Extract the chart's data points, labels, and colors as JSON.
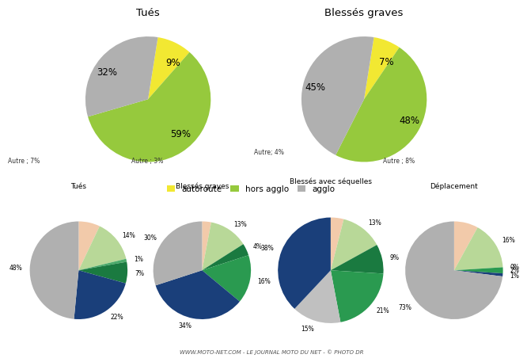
{
  "top_charts": [
    {
      "title": "Tués",
      "values": [
        9,
        59,
        32
      ],
      "labels": [
        "9%",
        "59%",
        "32%"
      ],
      "colors": [
        "#f2e832",
        "#96c93d",
        "#b0b0b0"
      ],
      "startangle": 81
    },
    {
      "title": "Blessés graves",
      "values": [
        7,
        48,
        45
      ],
      "labels": [
        "7%",
        "48%",
        "45%"
      ],
      "colors": [
        "#f2e832",
        "#96c93d",
        "#b0b0b0"
      ],
      "startangle": 81
    }
  ],
  "legend_labels": [
    "autoroute",
    "hors agglo",
    "agglo"
  ],
  "legend_colors": [
    "#f2e832",
    "#96c93d",
    "#b0b0b0"
  ],
  "bottom_charts": [
    {
      "title": "Tués",
      "subtitle": "Autre ; 7%",
      "values": [
        7,
        14,
        1,
        7,
        22,
        48
      ],
      "labels": [
        "",
        "14%",
        "1%",
        "7%",
        "22%",
        "48%"
      ],
      "colors": [
        "#f2caaa",
        "#b8d898",
        "#4aaa6a",
        "#1a7a40",
        "#1a3f7a",
        "#b0b0b0"
      ],
      "startangle": 90
    },
    {
      "title": "Blessés graves",
      "subtitle": "Autre ; 3%",
      "values": [
        3,
        13,
        4,
        16,
        34,
        30
      ],
      "labels": [
        "",
        "13%",
        "4%",
        "16%",
        "34%",
        "30%"
      ],
      "colors": [
        "#f2caaa",
        "#b8d898",
        "#1a7a40",
        "#2a9a50",
        "#1a3f7a",
        "#b0b0b0"
      ],
      "startangle": 90
    },
    {
      "title": "Blessés avec séquelles",
      "subtitle": "Autre; 4%",
      "values": [
        4,
        13,
        9,
        21,
        15,
        38
      ],
      "labels": [
        "",
        "13%",
        "9%",
        "21%",
        "15%",
        "38%"
      ],
      "colors": [
        "#f2caaa",
        "#b8d898",
        "#1a7a40",
        "#2a9a50",
        "#c0c0c0",
        "#1a3f7a"
      ],
      "startangle": 90
    },
    {
      "title": "Déplacement",
      "subtitle": "Autre ; 8%",
      "values": [
        8,
        16,
        0,
        2,
        1,
        73
      ],
      "labels": [
        "",
        "16%",
        "0%",
        "2%",
        "1%",
        "73%"
      ],
      "colors": [
        "#f2caaa",
        "#b8d898",
        "#f2e832",
        "#2a9a50",
        "#1a3f7a",
        "#b0b0b0"
      ],
      "startangle": 90
    }
  ],
  "footer": "WWW.MOTO-NET.COM - LE JOURNAL MOTO DU NET - © PHOTO DR",
  "bg_color": "#ffffff"
}
